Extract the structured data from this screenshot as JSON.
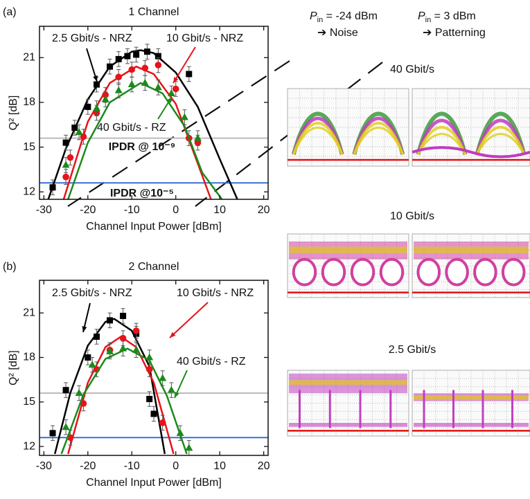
{
  "chart_data": [
    {
      "type": "scatter",
      "panel": "(a)",
      "title": "1 Channel",
      "x_label": "Channel Input Power [dBm]",
      "y_label": "Q² [dB]",
      "xlim": [
        -31,
        21
      ],
      "ylim": [
        11.5,
        23.1
      ],
      "xticks": [
        -30,
        -20,
        -10,
        0,
        10,
        20
      ],
      "yticks": [
        12,
        15,
        18,
        21
      ],
      "reference_lines": [
        {
          "value": 15.6,
          "color": "#bbbbbb",
          "label": "IPDR @ 10⁻⁹"
        },
        {
          "value": 12.6,
          "color": "#3a6fd8",
          "label": "IPDR @10⁻⁵"
        }
      ],
      "series": [
        {
          "name": "2.5 Gbit/s - NRZ",
          "color": "#000000",
          "marker": "square",
          "x": [
            -28,
            -25,
            -23,
            -20,
            -18,
            -15,
            -13,
            -11,
            -9,
            -6.5,
            -4,
            3
          ],
          "values": [
            12.3,
            15.3,
            16.3,
            17.7,
            19.2,
            20.4,
            20.9,
            21.1,
            21.2,
            21.4,
            21.1,
            19.9
          ],
          "errors": [
            0.5,
            0.5,
            0.5,
            0.5,
            0.5,
            0.5,
            0.5,
            0.5,
            0.5,
            0.5,
            0.5,
            0.5
          ],
          "fit": {
            "x": [
              -29,
              -25,
              -20,
              -15,
              -10,
              -8,
              -5,
              0,
              5,
              10,
              14
            ],
            "values": [
              11.5,
              14.9,
              18.2,
              20.4,
              21.4,
              21.5,
              21.3,
              20.0,
              17.7,
              14.2,
              11.5
            ]
          }
        },
        {
          "name": "10 Gbit/s  - NRZ",
          "color": "#e8121a",
          "marker": "circle",
          "x": [
            -25,
            -24,
            -21,
            -18,
            -16,
            -13,
            -10,
            -7,
            -4,
            0,
            3,
            5
          ],
          "values": [
            13.0,
            14.3,
            15.7,
            17.3,
            18.5,
            19.7,
            20.2,
            20.3,
            20.5,
            18.9,
            15.6,
            15.3
          ],
          "errors": [
            0.5,
            0.5,
            0.5,
            0.5,
            0.5,
            0.5,
            0.5,
            0.5,
            0.5,
            0.5,
            0.5,
            0.5
          ],
          "fit": {
            "x": [
              -25.5,
              -20,
              -15,
              -9,
              -5,
              0,
              5,
              8
            ],
            "values": [
              11.5,
              16.7,
              19.3,
              20.4,
              19.9,
              17.9,
              13.9,
              11.5
            ]
          }
        },
        {
          "name": "40 Gbit/s  - RZ",
          "color": "#1a8a1a",
          "marker": "triangle",
          "x": [
            -25,
            -22,
            -18,
            -16,
            -13,
            -10,
            -7,
            -4,
            -1,
            2,
            5
          ],
          "values": [
            13.8,
            16.0,
            17.6,
            18.2,
            18.8,
            19.2,
            19.3,
            19.0,
            18.6,
            17.0,
            15.6
          ],
          "errors": [
            0.5,
            0.5,
            0.5,
            0.5,
            0.5,
            0.5,
            0.5,
            0.5,
            0.5,
            0.5,
            0.5
          ],
          "fit": {
            "x": [
              -24.5,
              -20,
              -15,
              -8,
              -3,
              2,
              6,
              10.5
            ],
            "values": [
              11.5,
              15.3,
              18.0,
              19.3,
              18.6,
              16.4,
              13.3,
              11.5
            ]
          }
        }
      ]
    },
    {
      "type": "scatter",
      "panel": "(b)",
      "title": "2 Channel",
      "x_label": "Channel Input Power [dBm]",
      "y_label": "Q² [dB]",
      "xlim": [
        -31,
        21
      ],
      "ylim": [
        11.4,
        23.2
      ],
      "xticks": [
        -30,
        -20,
        -10,
        0,
        10,
        20
      ],
      "yticks": [
        12,
        15,
        18,
        21
      ],
      "reference_lines": [
        {
          "value": 15.6,
          "color": "#bbbbbb"
        },
        {
          "value": 12.6,
          "color": "#3a6fd8"
        }
      ],
      "series": [
        {
          "name": "2.5 Gbit/s - NRZ",
          "color": "#000000",
          "marker": "square",
          "x": [
            -28,
            -25,
            -20,
            -18,
            -15,
            -12,
            -9,
            -6,
            -5
          ],
          "values": [
            12.9,
            15.8,
            18.0,
            19.4,
            20.5,
            20.8,
            19.6,
            15.2,
            14.2
          ],
          "errors": [
            0.5,
            0.5,
            0.5,
            0.5,
            0.5,
            0.5,
            0.5,
            0.5,
            0.5
          ],
          "fit": {
            "x": [
              -27.5,
              -24,
              -20,
              -16,
              -14,
              -10,
              -6,
              -2.5
            ],
            "values": [
              11.5,
              15.6,
              18.8,
              20.4,
              20.6,
              19.8,
              17.4,
              11.5
            ]
          }
        },
        {
          "name": "10 Gbit/s  - NRZ",
          "color": "#e8121a",
          "marker": "circle",
          "x": [
            -24,
            -21,
            -18,
            -15,
            -12,
            -9,
            -6,
            -3
          ],
          "values": [
            12.6,
            14.9,
            17.2,
            18.5,
            19.3,
            19.8,
            17.2,
            13.6
          ],
          "errors": [
            0.5,
            0.5,
            0.5,
            0.5,
            0.5,
            0.5,
            0.5,
            0.5
          ],
          "fit": {
            "x": [
              -24.5,
              -20,
              -16,
              -12.5,
              -9,
              -5,
              -0.5
            ],
            "values": [
              11.5,
              16.3,
              18.7,
              19.4,
              18.7,
              16.3,
              11.5
            ]
          }
        },
        {
          "name": "40 Gbit/s  - RZ",
          "color": "#1a8a1a",
          "marker": "triangle",
          "x": [
            -25,
            -22,
            -19,
            -15,
            -12,
            -9,
            -6,
            -3,
            -1,
            1,
            3
          ],
          "values": [
            13.3,
            15.6,
            17.5,
            18.4,
            18.6,
            18.5,
            18.0,
            16.6,
            15.8,
            12.9,
            11.9
          ],
          "errors": [
            0.5,
            0.5,
            0.5,
            0.5,
            0.5,
            0.5,
            0.5,
            0.5,
            0.5,
            0.5,
            0.5
          ],
          "fit": {
            "x": [
              -26,
              -21,
              -16,
              -11,
              -6,
              -2,
              2.5
            ],
            "values": [
              11.5,
              15.5,
              17.9,
              18.6,
              17.8,
              15.4,
              11.5
            ]
          }
        }
      ]
    }
  ],
  "eye_diagrams": {
    "columns": [
      {
        "symbol": "P",
        "subscript": "in",
        "label": " = -24 dBm",
        "note": "➔ Noise"
      },
      {
        "symbol": "P",
        "subscript": "in",
        "label": " = 3 dBm",
        "note": "➔ Patterning"
      }
    ],
    "rows": [
      "40 Gbit/s",
      "10 Gbit/s",
      "2.5 Gbit/s"
    ]
  }
}
